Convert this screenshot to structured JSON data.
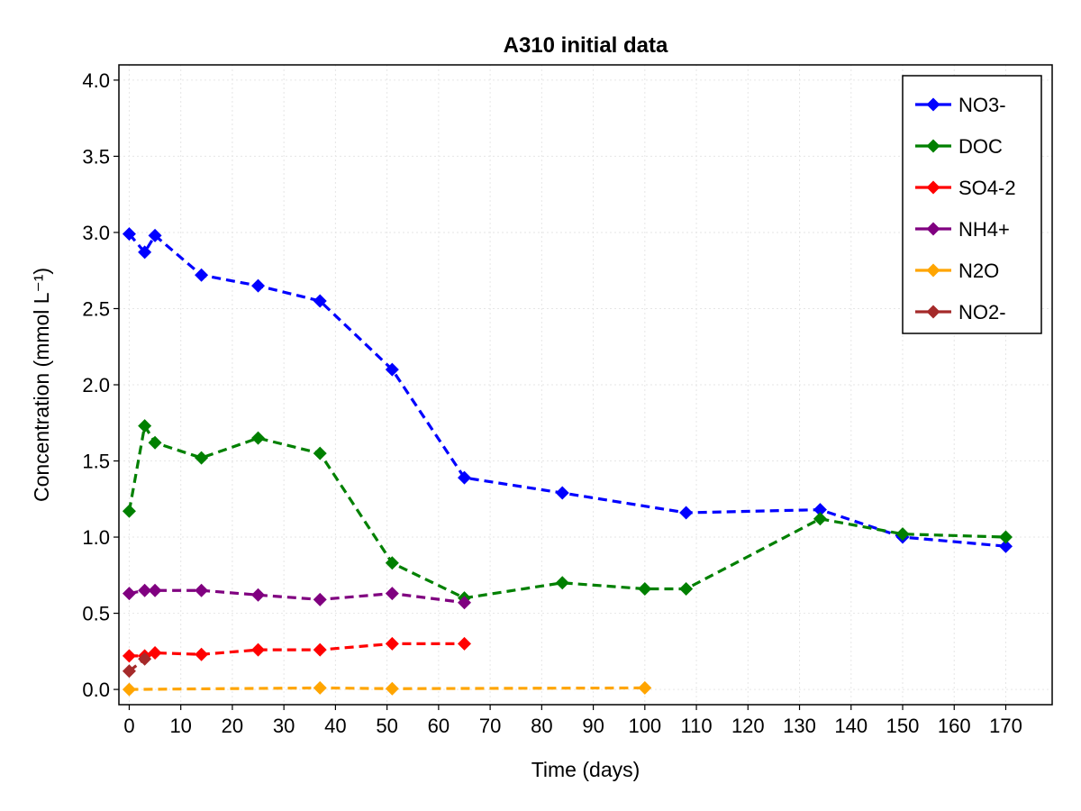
{
  "chart_data": {
    "type": "line",
    "title": "A310 initial data",
    "xlabel": "Time (days)",
    "ylabel": "Concentration (mmol L⁻¹)",
    "xlim": [
      -2,
      179
    ],
    "ylim": [
      -0.1,
      4.1
    ],
    "xticks": [
      0,
      10,
      20,
      30,
      40,
      50,
      60,
      70,
      80,
      90,
      100,
      110,
      120,
      130,
      140,
      150,
      160,
      170
    ],
    "yticks": [
      0.0,
      0.5,
      1.0,
      1.5,
      2.0,
      2.5,
      3.0,
      3.5,
      4.0
    ],
    "ytick_labels": [
      "0.0",
      "0.5",
      "1.0",
      "1.5",
      "2.0",
      "2.5",
      "3.0",
      "3.5",
      "4.0"
    ],
    "grid": true,
    "legend_position": "top-right",
    "marker": "diamond",
    "line_style": "dashed",
    "series": [
      {
        "name": "NO3-",
        "color": "#0000ff",
        "x": [
          0,
          3,
          5,
          14,
          25,
          37,
          51,
          65,
          84,
          108,
          134,
          150,
          170
        ],
        "y": [
          2.99,
          2.87,
          2.98,
          2.72,
          2.65,
          2.55,
          2.1,
          1.39,
          1.29,
          1.16,
          1.18,
          1.0,
          0.94
        ]
      },
      {
        "name": "DOC",
        "color": "#008000",
        "x": [
          0,
          3,
          5,
          14,
          25,
          37,
          51,
          65,
          84,
          100,
          108,
          134,
          150,
          170
        ],
        "y": [
          1.17,
          1.73,
          1.62,
          1.52,
          1.65,
          1.55,
          0.83,
          0.6,
          0.7,
          0.66,
          0.66,
          1.12,
          1.02,
          1.0
        ]
      },
      {
        "name": "SO4-2",
        "color": "#ff0000",
        "x": [
          0,
          3,
          5,
          14,
          25,
          37,
          51,
          65
        ],
        "y": [
          0.22,
          0.22,
          0.24,
          0.23,
          0.26,
          0.26,
          0.3,
          0.3
        ]
      },
      {
        "name": "NH4+",
        "color": "#800080",
        "x": [
          0,
          3,
          5,
          14,
          25,
          37,
          51,
          65
        ],
        "y": [
          0.63,
          0.65,
          0.65,
          0.65,
          0.62,
          0.59,
          0.63,
          0.57
        ]
      },
      {
        "name": "N2O",
        "color": "#ffa500",
        "x": [
          0,
          37,
          51,
          100
        ],
        "y": [
          0.0,
          0.01,
          0.005,
          0.01
        ]
      },
      {
        "name": "NO2-",
        "color": "#a52a2a",
        "x": [
          0,
          3
        ],
        "y": [
          0.12,
          0.2
        ]
      }
    ]
  }
}
